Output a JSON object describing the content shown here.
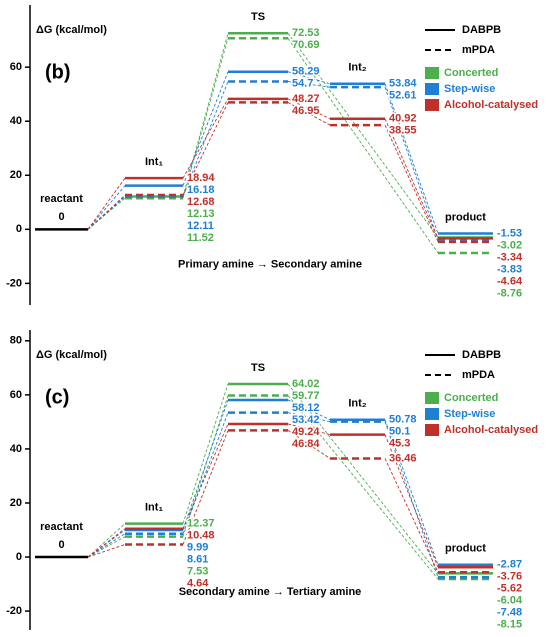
{
  "chart_data": [
    {
      "type": "energy-profile",
      "panel": "(b)",
      "ylabel": "ΔG (kcal/mol)",
      "subtitle": "Primary amine → Secondary amine",
      "categories": [
        "reactant",
        "Int₁",
        "TS",
        "Int₂",
        "product"
      ],
      "ylim": [
        -28,
        83
      ],
      "yticks": [
        -20,
        0,
        20,
        40,
        60
      ],
      "line_styles": [
        {
          "name": "DABPB",
          "dash": "solid"
        },
        {
          "name": "mPDA",
          "dash": "dashed"
        }
      ],
      "pathways": [
        {
          "name": "Concerted",
          "color": "#4cae4c"
        },
        {
          "name": "Step-wise",
          "color": "#1f7fd4"
        },
        {
          "name": "Alcohol-catalysed",
          "color": "#c0302a"
        }
      ],
      "series": [
        {
          "name": "Concerted",
          "style": "DABPB",
          "values": [
            0,
            12.13,
            72.53,
            null,
            -3.02
          ]
        },
        {
          "name": "Concerted",
          "style": "mPDA",
          "values": [
            0,
            11.52,
            70.69,
            null,
            -8.76
          ]
        },
        {
          "name": "Step-wise",
          "style": "DABPB",
          "values": [
            0,
            16.18,
            58.29,
            53.84,
            -1.53
          ]
        },
        {
          "name": "Step-wise",
          "style": "mPDA",
          "values": [
            0,
            12.11,
            54.7,
            52.61,
            -3.83
          ]
        },
        {
          "name": "Alcohol-catalysed",
          "style": "DABPB",
          "values": [
            0,
            18.94,
            48.27,
            40.92,
            -3.34
          ]
        },
        {
          "name": "Alcohol-catalysed",
          "style": "mPDA",
          "values": [
            0,
            12.68,
            46.95,
            38.55,
            -4.64
          ]
        }
      ]
    },
    {
      "type": "energy-profile",
      "panel": "(c)",
      "ylabel": "ΔG (kcal/mol)",
      "subtitle": "Secondary amine → Tertiary amine",
      "categories": [
        "reactant",
        "Int₁",
        "TS",
        "Int₂",
        "product"
      ],
      "ylim": [
        -27,
        84
      ],
      "yticks": [
        -20,
        0,
        20,
        40,
        60,
        80
      ],
      "line_styles": [
        {
          "name": "DABPB",
          "dash": "solid"
        },
        {
          "name": "mPDA",
          "dash": "dashed"
        }
      ],
      "pathways": [
        {
          "name": "Concerted",
          "color": "#4cae4c"
        },
        {
          "name": "Step-wise",
          "color": "#1f7fd4"
        },
        {
          "name": "Alcohol-catalysed",
          "color": "#c0302a"
        }
      ],
      "series": [
        {
          "name": "Concerted",
          "style": "DABPB",
          "values": [
            0,
            12.37,
            64.02,
            null,
            -6.04
          ]
        },
        {
          "name": "Concerted",
          "style": "mPDA",
          "values": [
            0,
            7.53,
            59.77,
            null,
            -8.15
          ]
        },
        {
          "name": "Step-wise",
          "style": "DABPB",
          "values": [
            0,
            9.99,
            58.12,
            50.78,
            -2.87
          ]
        },
        {
          "name": "Step-wise",
          "style": "mPDA",
          "values": [
            0,
            8.61,
            53.42,
            50.1,
            -7.48
          ]
        },
        {
          "name": "Alcohol-catalysed",
          "style": "DABPB",
          "values": [
            0,
            10.48,
            49.24,
            45.3,
            -3.76
          ]
        },
        {
          "name": "Alcohol-catalysed",
          "style": "mPDA",
          "values": [
            0,
            4.64,
            46.84,
            36.46,
            -5.62
          ]
        }
      ]
    }
  ]
}
